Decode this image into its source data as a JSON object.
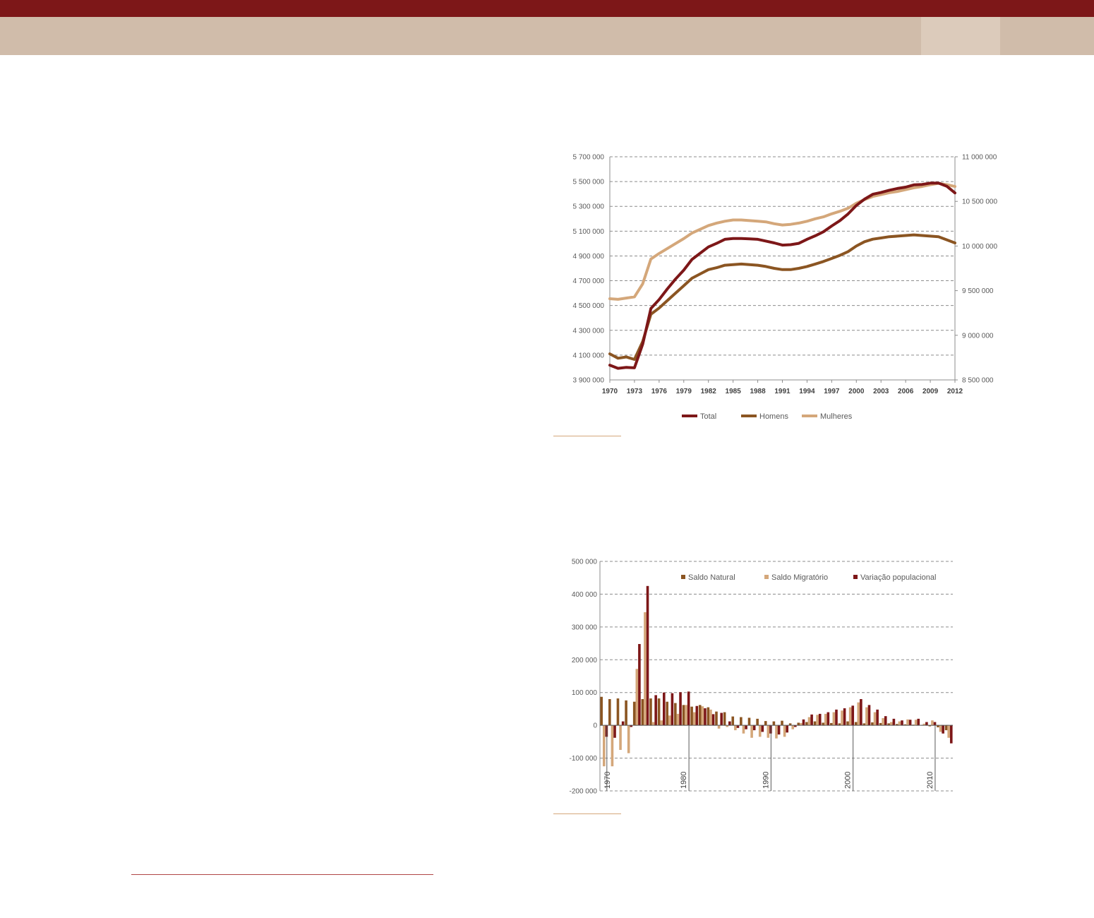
{
  "chart_data": [
    {
      "type": "line",
      "title": "",
      "x": [
        1970,
        1971,
        1972,
        1973,
        1974,
        1975,
        1976,
        1977,
        1978,
        1979,
        1980,
        1981,
        1982,
        1983,
        1984,
        1985,
        1986,
        1987,
        1988,
        1989,
        1990,
        1991,
        1992,
        1993,
        1994,
        1995,
        1996,
        1997,
        1998,
        1999,
        2000,
        2001,
        2002,
        2003,
        2004,
        2005,
        2006,
        2007,
        2008,
        2009,
        2010,
        2011,
        2012
      ],
      "x_tick_labels": [
        "1970",
        "1973",
        "1976",
        "1979",
        "1982",
        "1985",
        "1988",
        "1991",
        "1994",
        "1997",
        "2000",
        "2003",
        "2006",
        "2009",
        "2012"
      ],
      "y_left": {
        "range": [
          3900000,
          5700000
        ],
        "tick_labels": [
          "3 900 000",
          "4 100 000",
          "4 300 000",
          "4 500 000",
          "4 700 000",
          "4 900 000",
          "5 100 000",
          "5 300 000",
          "5 500 000",
          "5 700 000"
        ]
      },
      "y_right": {
        "range": [
          8500000,
          11000000
        ],
        "tick_labels": [
          "8 500 000",
          "9 000 000",
          "9 500 000",
          "10 000 000",
          "10 500 000",
          "11 000 000"
        ]
      },
      "grid": true,
      "legend_position": "bottom",
      "series": [
        {
          "name": "Total",
          "axis": "right",
          "color": "#7d1718",
          "values": [
            8665000,
            8630000,
            8640000,
            8635000,
            8900000,
            9300000,
            9400000,
            9520000,
            9630000,
            9730000,
            9850000,
            9920000,
            9990000,
            10030000,
            10075000,
            10085000,
            10085000,
            10080000,
            10075000,
            10055000,
            10035000,
            10010000,
            10015000,
            10030000,
            10075000,
            10115000,
            10160000,
            10225000,
            10285000,
            10360000,
            10455000,
            10525000,
            10580000,
            10600000,
            10625000,
            10645000,
            10660000,
            10685000,
            10690000,
            10705000,
            10705000,
            10670000,
            10595000
          ]
        },
        {
          "name": "Homens",
          "axis": "left",
          "color": "#8b5522",
          "values": [
            4110000,
            4075000,
            4085000,
            4065000,
            4210000,
            4430000,
            4480000,
            4540000,
            4600000,
            4660000,
            4720000,
            4755000,
            4790000,
            4805000,
            4825000,
            4830000,
            4835000,
            4830000,
            4825000,
            4815000,
            4800000,
            4790000,
            4790000,
            4800000,
            4815000,
            4835000,
            4855000,
            4880000,
            4905000,
            4935000,
            4980000,
            5015000,
            5035000,
            5045000,
            5055000,
            5060000,
            5065000,
            5070000,
            5065000,
            5060000,
            5055000,
            5030000,
            5005000
          ]
        },
        {
          "name": "Mulheres",
          "axis": "left",
          "color": "#d4a77a",
          "values": [
            4555000,
            4550000,
            4560000,
            4570000,
            4675000,
            4875000,
            4920000,
            4960000,
            5000000,
            5040000,
            5085000,
            5115000,
            5145000,
            5165000,
            5180000,
            5190000,
            5190000,
            5185000,
            5180000,
            5175000,
            5160000,
            5150000,
            5155000,
            5165000,
            5180000,
            5200000,
            5215000,
            5240000,
            5260000,
            5285000,
            5325000,
            5355000,
            5380000,
            5395000,
            5410000,
            5420000,
            5435000,
            5450000,
            5460000,
            5475000,
            5485000,
            5475000,
            5460000
          ]
        }
      ]
    },
    {
      "type": "bar",
      "title": "",
      "x": [
        1970,
        1971,
        1972,
        1973,
        1974,
        1975,
        1976,
        1977,
        1978,
        1979,
        1980,
        1981,
        1982,
        1983,
        1984,
        1985,
        1986,
        1987,
        1988,
        1989,
        1990,
        1991,
        1992,
        1993,
        1994,
        1995,
        1996,
        1997,
        1998,
        1999,
        2000,
        2001,
        2002,
        2003,
        2004,
        2005,
        2006,
        2007,
        2008,
        2009,
        2010,
        2011,
        2012
      ],
      "decade_labels": [
        "1970",
        "1980",
        "1990",
        "2000",
        "2010"
      ],
      "y_tick_labels": [
        "-200 000",
        "-100 000",
        "0",
        "100 000",
        "200 000",
        "300 000",
        "400 000",
        "500 000"
      ],
      "ylim": [
        -200000,
        500000
      ],
      "grid": true,
      "legend_position": "top-right",
      "series": [
        {
          "name": "Saldo Natural",
          "color": "#8b5522",
          "values": [
            87000,
            80000,
            82000,
            76000,
            72000,
            80000,
            82000,
            82000,
            72000,
            68000,
            62000,
            57000,
            62000,
            55000,
            42000,
            40000,
            27000,
            25000,
            23000,
            20000,
            13000,
            12000,
            14000,
            6000,
            8000,
            10000,
            12000,
            8000,
            7000,
            6000,
            12000,
            10000,
            6000,
            9000,
            7000,
            6000,
            4000,
            3000,
            2000,
            1000,
            -3000,
            -6000,
            -15000
          ]
        },
        {
          "name": "Saldo Migratório",
          "color": "#d4a77a",
          "values": [
            -125000,
            -125000,
            -75000,
            -85000,
            172000,
            345000,
            10000,
            15000,
            30000,
            35000,
            62000,
            40000,
            58000,
            48000,
            -10000,
            -5000,
            -15000,
            -25000,
            -38000,
            -35000,
            -38000,
            -40000,
            -35000,
            -12000,
            7000,
            25000,
            32000,
            35000,
            40000,
            45000,
            55000,
            70000,
            55000,
            40000,
            22000,
            10000,
            12000,
            18000,
            17000,
            5000,
            15000,
            -20000,
            -38000
          ]
        },
        {
          "name": "Variação populacional",
          "color": "#7d1718",
          "values": [
            -35000,
            -38000,
            12000,
            -5000,
            248000,
            425000,
            92000,
            100000,
            98000,
            101000,
            103000,
            59000,
            52000,
            34000,
            38000,
            12000,
            -8000,
            -12000,
            -15000,
            -20000,
            -25000,
            -28000,
            -22000,
            -5000,
            18000,
            33000,
            35000,
            40000,
            48000,
            52000,
            60000,
            80000,
            62000,
            48000,
            28000,
            20000,
            15000,
            17000,
            20000,
            10000,
            10000,
            -25000,
            -55000
          ]
        }
      ]
    }
  ]
}
